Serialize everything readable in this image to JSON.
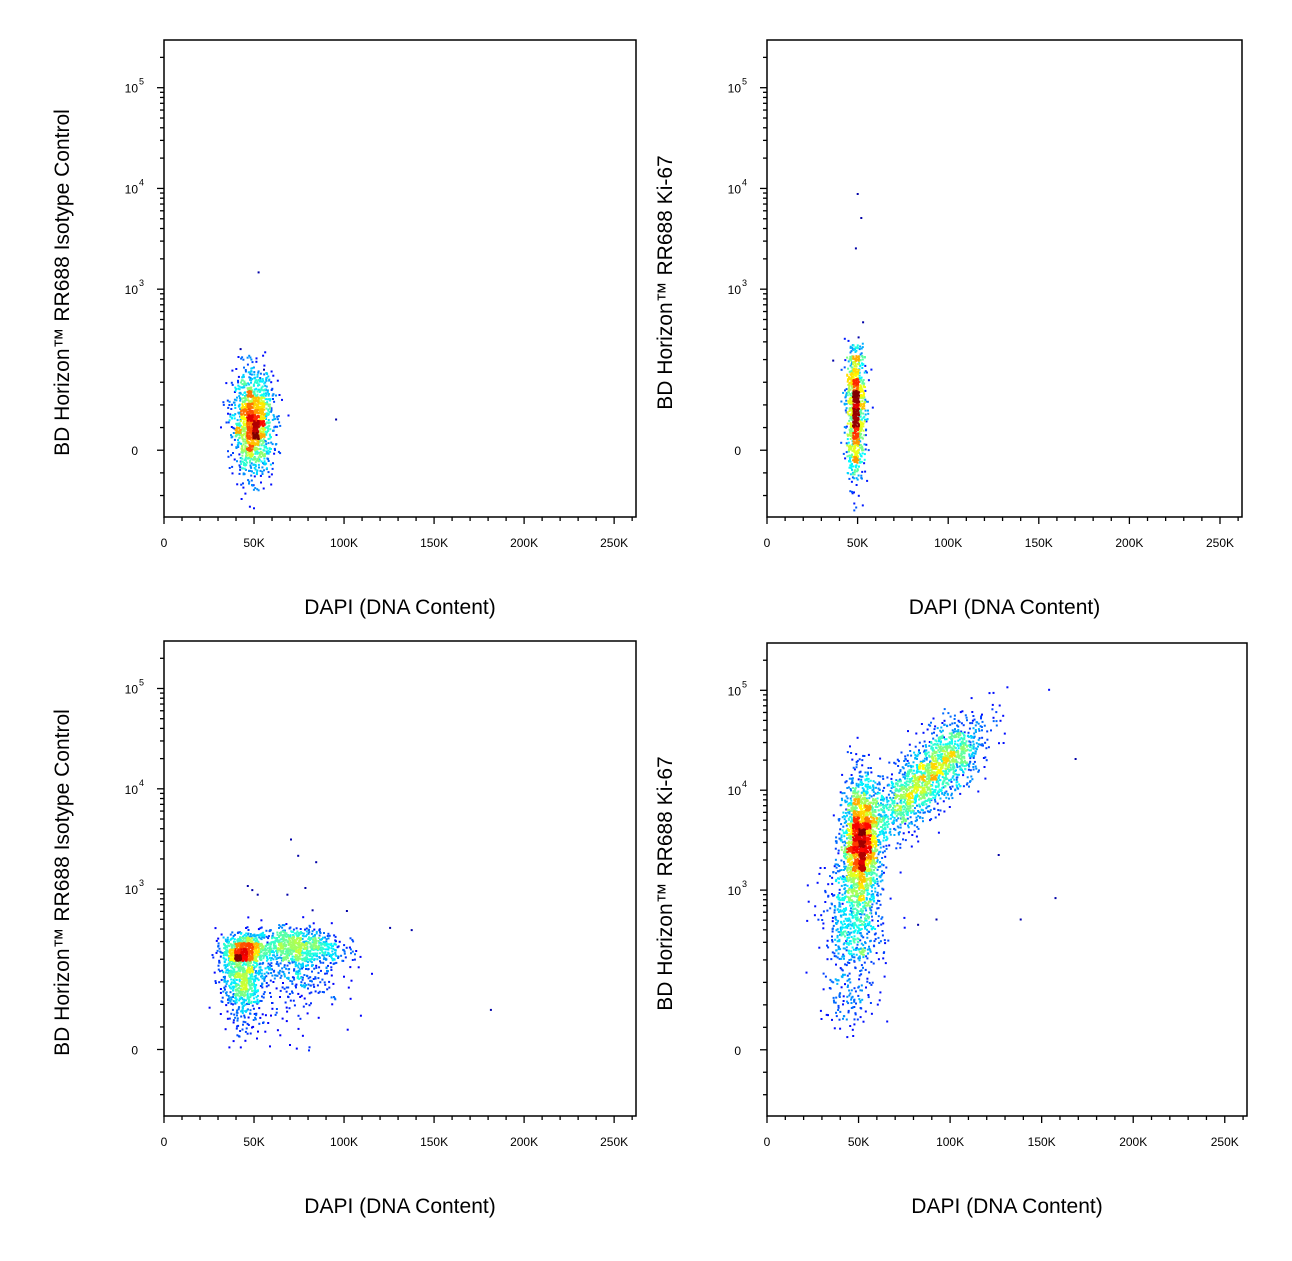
{
  "chart_data": [
    {
      "type": "scatter",
      "style": "density-pseudocolor",
      "xlabel": "DAPI (DNA Content)",
      "ylabel": "BD Horizon™ RR688 Isotype Control",
      "x_ticks": [
        "0",
        "50K",
        "100K",
        "150K",
        "200K",
        "250K"
      ],
      "xlim": [
        0,
        262144
      ],
      "y_scale": "biexponential",
      "y_ticks": [
        {
          "value": 0,
          "label": "0"
        },
        {
          "value": 1000,
          "label": "10",
          "exponent": "3"
        },
        {
          "value": 10000,
          "label": "10",
          "exponent": "4"
        },
        {
          "value": 100000,
          "label": "10",
          "exponent": "5"
        }
      ],
      "populations": [
        {
          "center": [
            49000,
            60
          ],
          "spread": [
            5500,
            55
          ],
          "count": 1400,
          "skew_x": 0,
          "skew_y": 0
        }
      ],
      "outliers": [
        [
          52000,
          1500
        ],
        [
          95000,
          70
        ],
        [
          42000,
          260
        ],
        [
          55000,
          180
        ]
      ]
    },
    {
      "type": "scatter",
      "style": "density-pseudocolor",
      "xlabel": "DAPI (DNA Content)",
      "ylabel": "BD Horizon™ RR688 Ki-67",
      "x_ticks": [
        "0",
        "50K",
        "100K",
        "150K",
        "200K",
        "250K"
      ],
      "xlim": [
        0,
        262144
      ],
      "y_scale": "biexponential",
      "y_ticks": [
        {
          "value": 0,
          "label": "0"
        },
        {
          "value": 1000,
          "label": "10",
          "exponent": "3"
        },
        {
          "value": 10000,
          "label": "10",
          "exponent": "4"
        },
        {
          "value": 100000,
          "label": "10",
          "exponent": "5"
        }
      ],
      "populations": [
        {
          "center": [
            48500,
            90
          ],
          "spread": [
            2600,
            75
          ],
          "count": 900,
          "skew_x": 0,
          "skew_y": 0
        }
      ],
      "outliers": [
        [
          49500,
          9000
        ],
        [
          51500,
          5200
        ],
        [
          48500,
          2600
        ],
        [
          52500,
          480
        ],
        [
          50000,
          340
        ],
        [
          36000,
          200
        ]
      ]
    },
    {
      "type": "scatter",
      "style": "density-pseudocolor",
      "xlabel": "DAPI (DNA Content)",
      "ylabel": "BD Horizon™ RR688 Isotype Control",
      "x_ticks": [
        "0",
        "50K",
        "100K",
        "150K",
        "200K",
        "250K"
      ],
      "xlim": [
        0,
        262144
      ],
      "y_scale": "biexponential",
      "y_ticks": [
        {
          "value": 0,
          "label": "0"
        },
        {
          "value": 1000,
          "label": "10",
          "exponent": "3"
        },
        {
          "value": 10000,
          "label": "10",
          "exponent": "4"
        },
        {
          "value": 100000,
          "label": "10",
          "exponent": "5"
        }
      ],
      "populations": [
        {
          "center": [
            43000,
            200
          ],
          "spread": [
            5500,
            70
          ],
          "count": 1200,
          "skew_x": 0,
          "skew_y": 0
        },
        {
          "center": [
            72000,
            250
          ],
          "spread": [
            13000,
            80
          ],
          "count": 1100,
          "skew_x": 0,
          "skew_y": 0
        }
      ],
      "outliers": [
        [
          46000,
          1100
        ],
        [
          48500,
          1000
        ],
        [
          51500,
          900
        ],
        [
          70000,
          3200
        ],
        [
          74000,
          2200
        ],
        [
          84000,
          1900
        ],
        [
          78000,
          1050
        ],
        [
          68000,
          900
        ],
        [
          82000,
          630
        ],
        [
          101000,
          620
        ],
        [
          125000,
          420
        ],
        [
          137000,
          400
        ],
        [
          181000,
          90
        ]
      ]
    },
    {
      "type": "scatter",
      "style": "density-pseudocolor",
      "xlabel": "DAPI (DNA Content)",
      "ylabel": "BD Horizon™ RR688 Ki-67",
      "x_ticks": [
        "0",
        "50K",
        "100K",
        "150K",
        "200K",
        "250K"
      ],
      "xlim": [
        0,
        262144
      ],
      "y_scale": "biexponential",
      "y_ticks": [
        {
          "value": 0,
          "label": "0"
        },
        {
          "value": 1000,
          "label": "10",
          "exponent": "3"
        },
        {
          "value": 10000,
          "label": "10",
          "exponent": "4"
        },
        {
          "value": 100000,
          "label": "10",
          "exponent": "5"
        }
      ],
      "populations": [
        {
          "center": [
            51000,
            3000
          ],
          "spread": [
            5000,
            0.32
          ],
          "count": 1800,
          "skew_x": 0,
          "skew_y": 0
        },
        {
          "center": [
            46000,
            400
          ],
          "spread": [
            8000,
            0.38
          ],
          "count": 700,
          "skew_x": 0,
          "skew_y": 0
        },
        {
          "center": [
            85000,
            12000
          ],
          "spread": [
            16000,
            0.18
          ],
          "count": 1500,
          "skew_x": 1,
          "skew_y": 0
        },
        {
          "center": [
            100000,
            30000
          ],
          "spread": [
            8000,
            0.14
          ],
          "count": 200,
          "skew_x": 0,
          "skew_y": 0
        }
      ],
      "outliers": [
        [
          168000,
          21000
        ],
        [
          157000,
          850
        ],
        [
          138000,
          520
        ],
        [
          126000,
          2300
        ],
        [
          92000,
          520
        ],
        [
          82000,
          460
        ]
      ]
    }
  ]
}
